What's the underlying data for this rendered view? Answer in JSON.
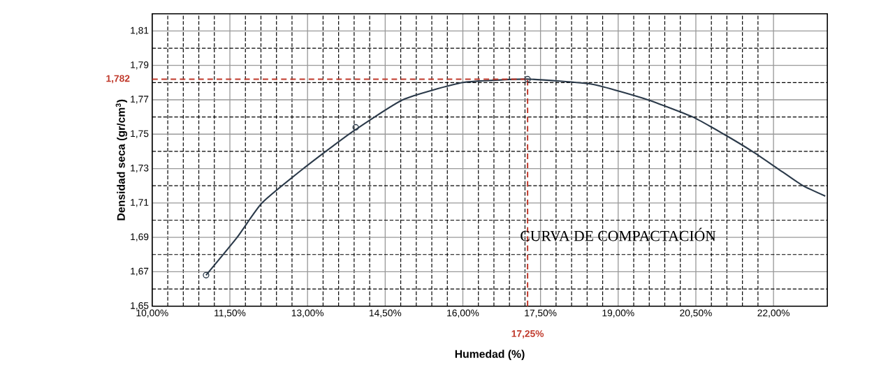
{
  "chart_data": {
    "type": "line",
    "title": "CURVA DE COMPACTACIÓN",
    "xlabel": "Humedad (%)",
    "ylabel": "Densidad seca (gr/cm$^{3}$)",
    "xlim": [
      10,
      23.04
    ],
    "ylim": [
      1.65,
      1.82
    ],
    "xticks": [
      {
        "value": 10,
        "label": "10,00%"
      },
      {
        "value": 11.5,
        "label": "11,50%"
      },
      {
        "value": 13,
        "label": "13,00%"
      },
      {
        "value": 14.5,
        "label": "14,50%"
      },
      {
        "value": 16,
        "label": "16,00%"
      },
      {
        "value": 17.5,
        "label": "17,50%"
      },
      {
        "value": 19,
        "label": "19,00%"
      },
      {
        "value": 20.5,
        "label": "20,50%"
      },
      {
        "value": 22,
        "label": "22,00%"
      }
    ],
    "yticks": [
      {
        "value": 1.65,
        "label": "1,65"
      },
      {
        "value": 1.67,
        "label": "1,67"
      },
      {
        "value": 1.69,
        "label": "1,69"
      },
      {
        "value": 1.71,
        "label": "1,71"
      },
      {
        "value": 1.73,
        "label": "1,73"
      },
      {
        "value": 1.75,
        "label": "1,75"
      },
      {
        "value": 1.77,
        "label": "1,77"
      },
      {
        "value": 1.79,
        "label": "1,79"
      },
      {
        "value": 1.81,
        "label": "1,81"
      }
    ],
    "grid": true,
    "series": [
      {
        "color": "#2b3a4a",
        "marker": "none",
        "x": [
          11.04,
          11.64,
          12.12,
          12.92,
          13.8,
          14.84,
          16.0,
          17.25,
          18.5,
          19.57,
          20.44,
          21.04,
          21.59,
          22.08,
          22.57,
          23.0
        ],
        "values": [
          1.668,
          1.69,
          1.71,
          1.73,
          1.75,
          1.77,
          1.78,
          1.782,
          1.779,
          1.77,
          1.76,
          1.75,
          1.74,
          1.73,
          1.72,
          1.714
        ]
      },
      {
        "type": "scatter",
        "color": "#2b3a4a",
        "marker": "circle",
        "x": [
          11.04,
          13.93,
          17.25
        ],
        "values": [
          1.668,
          1.754,
          1.782
        ]
      }
    ],
    "ref_lines": [
      {
        "axis": "y",
        "value": 1.782,
        "label": "1,782",
        "color": "#c0392b",
        "line_style": "dashed"
      },
      {
        "axis": "x",
        "value": 17.25,
        "label": "17,25%",
        "color": "#c0392b",
        "line_style": "dashed"
      }
    ]
  }
}
